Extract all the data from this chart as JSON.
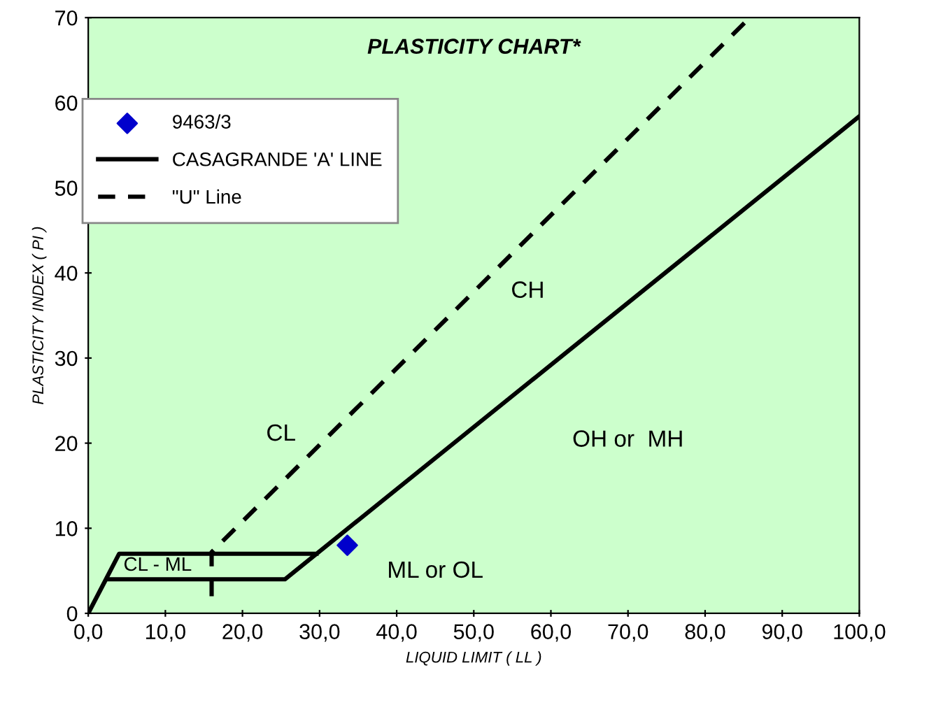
{
  "chart_data": {
    "type": "line",
    "title": "PLASTICITY CHART*",
    "xlabel": "LIQUID LIMIT ( LL )",
    "ylabel": "PLASTICITY INDEX ( PI )",
    "xlim": [
      0,
      100
    ],
    "ylim": [
      0,
      70
    ],
    "xticks": [
      {
        "value": 0,
        "label": "0,0"
      },
      {
        "value": 10,
        "label": "10,0"
      },
      {
        "value": 20,
        "label": "20,0"
      },
      {
        "value": 30,
        "label": "30,0"
      },
      {
        "value": 40,
        "label": "40,0"
      },
      {
        "value": 50,
        "label": "50,0"
      },
      {
        "value": 60,
        "label": "60,0"
      },
      {
        "value": 70,
        "label": "70,0"
      },
      {
        "value": 80,
        "label": "80,0"
      },
      {
        "value": 90,
        "label": "90,0"
      },
      {
        "value": 100,
        "label": "100,0"
      }
    ],
    "yticks": [
      0,
      10,
      20,
      30,
      40,
      50,
      60,
      70
    ],
    "series": [
      {
        "name": "9463/3",
        "type": "scatter",
        "color": "#0000cc",
        "marker": "diamond",
        "x": [
          33.6
        ],
        "values": [
          8.0
        ]
      },
      {
        "name": "CASAGRANDE 'A' LINE",
        "color": "#000000",
        "line_style": "solid",
        "x": [
          100,
          25.5,
          2.3,
          0,
          4,
          29.6
        ],
        "values": [
          58.4,
          4,
          4,
          0,
          7,
          7
        ]
      },
      {
        "name": "\"U\" Line",
        "color": "#000000",
        "line_style": "dashed",
        "x": [
          16,
          16,
          85.8
        ],
        "values": [
          2,
          7.2,
          70
        ]
      }
    ],
    "annotations": [
      "CH",
      "CL",
      "OH or  MH",
      "ML or OL",
      "CL - ML"
    ],
    "legend": "top left",
    "grid": false
  }
}
